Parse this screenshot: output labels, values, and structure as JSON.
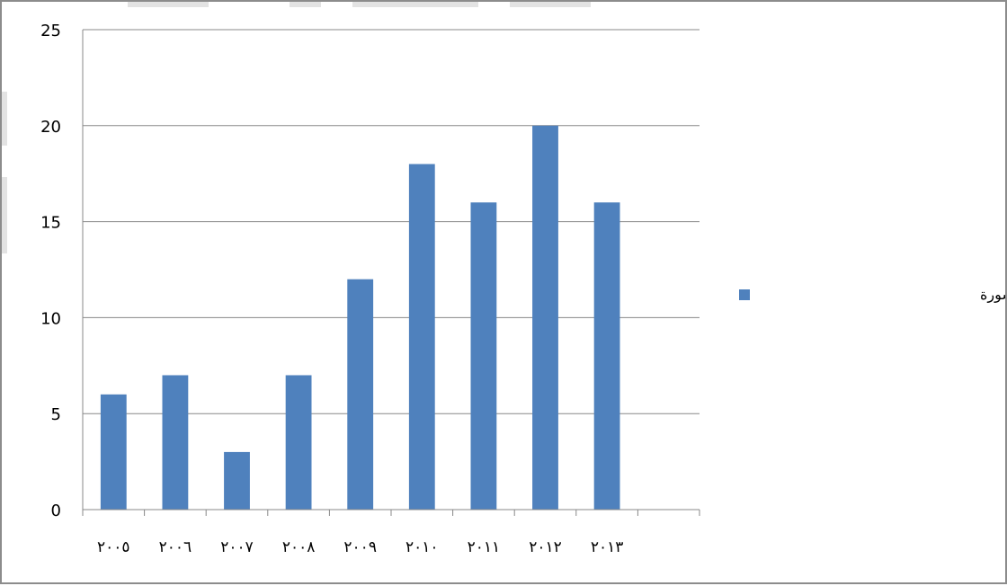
{
  "chart_data": {
    "type": "bar",
    "categories": [
      "٢٠٠٥",
      "٢٠٠٦",
      "٢٠٠٧",
      "٢٠٠٨",
      "٢٠٠٩",
      "٢٠١٠",
      "٢٠١١",
      "٢٠١٢",
      "٢٠١٣"
    ],
    "series": [
      {
        "name": "عدد الابحاث الدولية المنشورة",
        "values": [
          6,
          7,
          3,
          7,
          12,
          18,
          16,
          20,
          16
        ]
      }
    ],
    "title": "",
    "xlabel": "",
    "ylabel": "",
    "ylim": [
      0,
      25
    ],
    "yticks": [
      0,
      5,
      10,
      15,
      20,
      25
    ],
    "grid": true,
    "legend_position": "right",
    "bar_color": "#4f81bd",
    "grid_color": "#888888"
  }
}
